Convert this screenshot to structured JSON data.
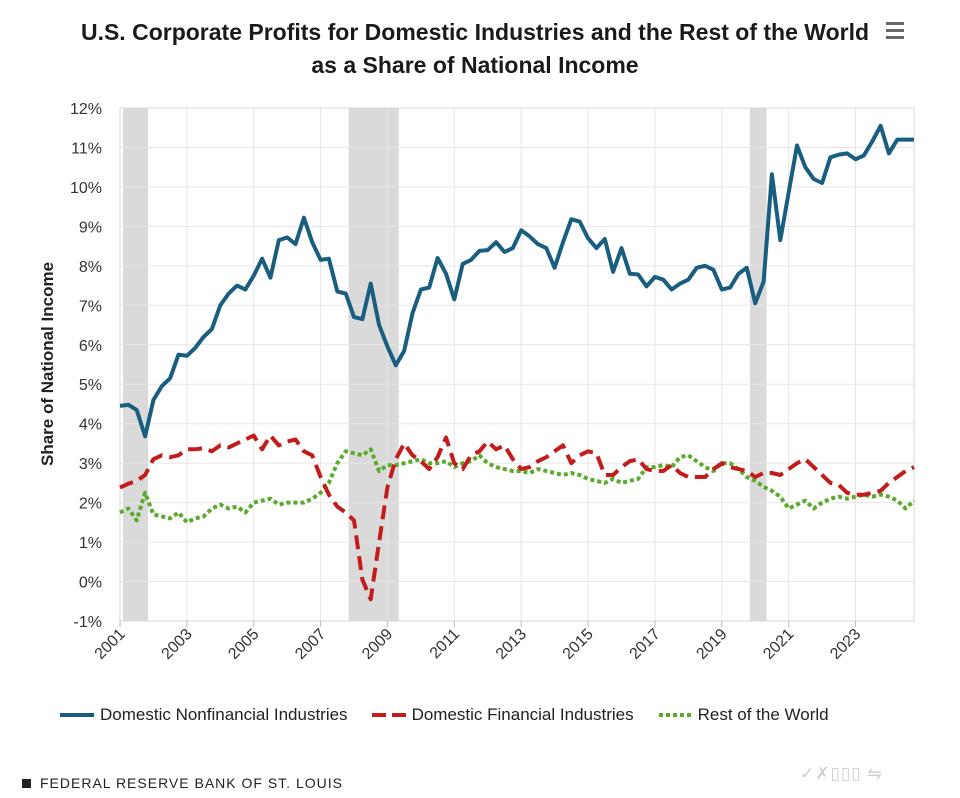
{
  "title_line1": "U.S. Corporate Profits for Domestic Industries and the Rest of the World",
  "title_line2": "as a Share of National Income",
  "menu_icon": "hamburger-menu-icon",
  "footer": "FEDERAL RESERVE BANK OF ST. LOUIS",
  "watermark": "✓✗▯▯▯ ⇋",
  "colors": {
    "nonfinancial": "#1a5e7f",
    "financial": "#c41c1c",
    "rest_of_world": "#5aaa2c",
    "recession": "#dadada",
    "grid": "#e6e6e6"
  },
  "chart_data": {
    "type": "line",
    "title": "U.S. Corporate Profits for Domestic Industries and the Rest of the World as a Share of National Income",
    "xlabel": "",
    "ylabel": "Share of National Income",
    "xlim": [
      2001.0,
      2024.75
    ],
    "ylim": [
      -1,
      12
    ],
    "yticks": [
      -1,
      0,
      1,
      2,
      3,
      4,
      5,
      6,
      7,
      8,
      9,
      10,
      11,
      12
    ],
    "ytick_labels": [
      "-1%",
      "0%",
      "1%",
      "2%",
      "3%",
      "4%",
      "5%",
      "6%",
      "7%",
      "8%",
      "9%",
      "10%",
      "11%",
      "12%"
    ],
    "xticks": [
      2001,
      2003,
      2005,
      2007,
      2009,
      2011,
      2013,
      2015,
      2017,
      2019,
      2021,
      2023
    ],
    "xtick_labels": [
      "2001",
      "2003",
      "2005",
      "2007",
      "2009",
      "2011",
      "2013",
      "2015",
      "2017",
      "2019",
      "2021",
      "2023"
    ],
    "grid": true,
    "legend_position": "bottom",
    "recessions": [
      [
        2001.0,
        2001.75
      ],
      [
        2007.75,
        2009.25
      ],
      [
        2019.75,
        2020.25
      ]
    ],
    "series": [
      {
        "name": "Domestic Nonfinancial Industries",
        "style": "solid",
        "x": [
          2001.0,
          2001.25,
          2001.5,
          2001.75,
          2002.0,
          2002.25,
          2002.5,
          2002.75,
          2003.0,
          2003.25,
          2003.5,
          2003.75,
          2004.0,
          2004.25,
          2004.5,
          2004.75,
          2005.0,
          2005.25,
          2005.5,
          2005.75,
          2006.0,
          2006.25,
          2006.5,
          2006.75,
          2007.0,
          2007.25,
          2007.5,
          2007.75,
          2008.0,
          2008.25,
          2008.5,
          2008.75,
          2009.0,
          2009.25,
          2009.5,
          2009.75,
          2010.0,
          2010.25,
          2010.5,
          2010.75,
          2011.0,
          2011.25,
          2011.5,
          2011.75,
          2012.0,
          2012.25,
          2012.5,
          2012.75,
          2013.0,
          2013.25,
          2013.5,
          2013.75,
          2014.0,
          2014.25,
          2014.5,
          2014.75,
          2015.0,
          2015.25,
          2015.5,
          2015.75,
          2016.0,
          2016.25,
          2016.5,
          2016.75,
          2017.0,
          2017.25,
          2017.5,
          2017.75,
          2018.0,
          2018.25,
          2018.5,
          2018.75,
          2019.0,
          2019.25,
          2019.5,
          2019.75,
          2020.0,
          2020.25,
          2020.5,
          2020.75,
          2021.0,
          2021.25,
          2021.5,
          2021.75,
          2022.0,
          2022.25,
          2022.5,
          2022.75,
          2023.0,
          2023.25,
          2023.5,
          2023.75,
          2024.0,
          2024.25,
          2024.5,
          2024.75
        ],
        "values": [
          4.45,
          4.48,
          4.35,
          3.68,
          4.6,
          4.95,
          5.15,
          5.75,
          5.72,
          5.92,
          6.2,
          6.4,
          7.0,
          7.3,
          7.5,
          7.4,
          7.75,
          8.18,
          7.7,
          8.65,
          8.72,
          8.55,
          9.22,
          8.6,
          8.15,
          8.18,
          7.35,
          7.3,
          6.7,
          6.65,
          7.55,
          6.5,
          5.95,
          5.48,
          5.85,
          6.8,
          7.4,
          7.45,
          8.2,
          7.8,
          7.15,
          8.05,
          8.15,
          8.38,
          8.4,
          8.6,
          8.35,
          8.45,
          8.9,
          8.75,
          8.55,
          8.45,
          7.95,
          8.6,
          9.18,
          9.12,
          8.7,
          8.45,
          8.68,
          7.85,
          8.45,
          7.8,
          7.78,
          7.48,
          7.72,
          7.65,
          7.4,
          7.55,
          7.65,
          7.95,
          8.0,
          7.9,
          7.4,
          7.45,
          7.8,
          7.95,
          7.05,
          7.6,
          10.32,
          8.65,
          9.85,
          11.05,
          10.5,
          10.2,
          10.1,
          10.75,
          10.82,
          10.85,
          10.7,
          10.8,
          11.15,
          11.55,
          10.85,
          11.2,
          11.2,
          11.2
        ]
      },
      {
        "name": "Domestic Financial Industries",
        "style": "dashed",
        "x": [
          2001.0,
          2001.25,
          2001.5,
          2001.75,
          2002.0,
          2002.25,
          2002.5,
          2002.75,
          2003.0,
          2003.25,
          2003.5,
          2003.75,
          2004.0,
          2004.25,
          2004.5,
          2004.75,
          2005.0,
          2005.25,
          2005.5,
          2005.75,
          2006.0,
          2006.25,
          2006.5,
          2006.75,
          2007.0,
          2007.25,
          2007.5,
          2007.75,
          2008.0,
          2008.25,
          2008.5,
          2008.75,
          2009.0,
          2009.25,
          2009.5,
          2009.75,
          2010.0,
          2010.25,
          2010.5,
          2010.75,
          2011.0,
          2011.25,
          2011.5,
          2011.75,
          2012.0,
          2012.25,
          2012.5,
          2012.75,
          2013.0,
          2013.25,
          2013.5,
          2013.75,
          2014.0,
          2014.25,
          2014.5,
          2014.75,
          2015.0,
          2015.25,
          2015.5,
          2015.75,
          2016.0,
          2016.25,
          2016.5,
          2016.75,
          2017.0,
          2017.25,
          2017.5,
          2017.75,
          2018.0,
          2018.25,
          2018.5,
          2018.75,
          2019.0,
          2019.25,
          2019.5,
          2019.75,
          2020.0,
          2020.25,
          2020.5,
          2020.75,
          2021.0,
          2021.25,
          2021.5,
          2021.75,
          2022.0,
          2022.25,
          2022.5,
          2022.75,
          2023.0,
          2023.25,
          2023.5,
          2023.75,
          2024.0,
          2024.25,
          2024.5,
          2024.75
        ],
        "values": [
          2.38,
          2.48,
          2.55,
          2.7,
          3.1,
          3.2,
          3.15,
          3.2,
          3.35,
          3.35,
          3.38,
          3.3,
          3.45,
          3.4,
          3.5,
          3.6,
          3.7,
          3.35,
          3.7,
          3.45,
          3.55,
          3.6,
          3.3,
          3.2,
          2.65,
          2.2,
          1.9,
          1.75,
          1.55,
          0.05,
          -0.45,
          1.0,
          2.4,
          3.1,
          3.5,
          3.2,
          3.05,
          2.85,
          3.15,
          3.65,
          3.0,
          2.85,
          3.2,
          3.3,
          3.55,
          3.35,
          3.45,
          3.1,
          2.85,
          2.9,
          3.05,
          3.15,
          3.3,
          3.45,
          3.0,
          3.2,
          3.3,
          3.25,
          2.7,
          2.7,
          2.9,
          3.05,
          3.1,
          2.85,
          2.8,
          2.8,
          2.95,
          2.75,
          2.65,
          2.65,
          2.65,
          2.85,
          3.0,
          2.9,
          2.85,
          2.8,
          2.65,
          2.75,
          2.75,
          2.7,
          2.85,
          3.0,
          3.1,
          2.9,
          2.7,
          2.5,
          2.45,
          2.25,
          2.2,
          2.2,
          2.25,
          2.3,
          2.5,
          2.65,
          2.8,
          2.9
        ]
      },
      {
        "name": "Rest of the World",
        "style": "dotted",
        "x": [
          2001.0,
          2001.25,
          2001.5,
          2001.75,
          2002.0,
          2002.25,
          2002.5,
          2002.75,
          2003.0,
          2003.25,
          2003.5,
          2003.75,
          2004.0,
          2004.25,
          2004.5,
          2004.75,
          2005.0,
          2005.25,
          2005.5,
          2005.75,
          2006.0,
          2006.25,
          2006.5,
          2006.75,
          2007.0,
          2007.25,
          2007.5,
          2007.75,
          2008.0,
          2008.25,
          2008.5,
          2008.75,
          2009.0,
          2009.25,
          2009.5,
          2009.75,
          2010.0,
          2010.25,
          2010.5,
          2010.75,
          2011.0,
          2011.25,
          2011.5,
          2011.75,
          2012.0,
          2012.25,
          2012.5,
          2012.75,
          2013.0,
          2013.25,
          2013.5,
          2013.75,
          2014.0,
          2014.25,
          2014.5,
          2014.75,
          2015.0,
          2015.25,
          2015.5,
          2015.75,
          2016.0,
          2016.25,
          2016.5,
          2016.75,
          2017.0,
          2017.25,
          2017.5,
          2017.75,
          2018.0,
          2018.25,
          2018.5,
          2018.75,
          2019.0,
          2019.25,
          2019.5,
          2019.75,
          2020.0,
          2020.25,
          2020.5,
          2020.75,
          2021.0,
          2021.25,
          2021.5,
          2021.75,
          2022.0,
          2022.25,
          2022.5,
          2022.75,
          2023.0,
          2023.25,
          2023.5,
          2023.75,
          2024.0,
          2024.25,
          2024.5,
          2024.75
        ],
        "values": [
          1.75,
          1.85,
          1.55,
          2.25,
          1.7,
          1.65,
          1.6,
          1.75,
          1.5,
          1.6,
          1.65,
          1.85,
          1.95,
          1.85,
          1.9,
          1.75,
          2.0,
          2.05,
          2.1,
          1.95,
          2.0,
          2.0,
          2.0,
          2.1,
          2.25,
          2.5,
          3.0,
          3.3,
          3.25,
          3.2,
          3.35,
          2.8,
          2.95,
          2.95,
          3.0,
          3.05,
          3.1,
          3.0,
          3.0,
          3.05,
          2.9,
          3.0,
          3.05,
          3.2,
          3.0,
          2.9,
          2.85,
          2.8,
          2.8,
          2.75,
          2.85,
          2.8,
          2.75,
          2.7,
          2.75,
          2.7,
          2.6,
          2.55,
          2.5,
          2.6,
          2.5,
          2.55,
          2.6,
          2.9,
          2.9,
          2.95,
          2.9,
          3.15,
          3.2,
          3.05,
          2.9,
          2.8,
          3.0,
          3.0,
          2.85,
          2.65,
          2.55,
          2.4,
          2.3,
          2.15,
          1.85,
          1.95,
          2.05,
          1.85,
          2.0,
          2.1,
          2.15,
          2.1,
          2.15,
          2.2,
          2.15,
          2.2,
          2.15,
          2.05,
          1.85,
          2.05
        ]
      }
    ]
  }
}
